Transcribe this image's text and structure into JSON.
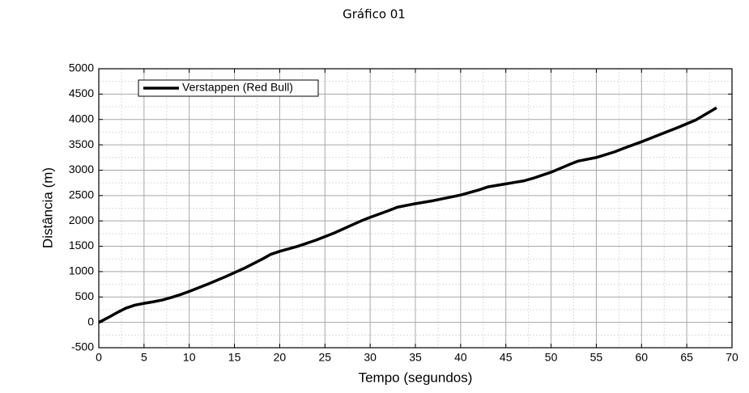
{
  "chart_data": {
    "type": "line",
    "title": "Gráfico 01",
    "x_label": "Tempo (segundos)",
    "y_label": "Distância (m)",
    "x": [
      0,
      1,
      2,
      3,
      4,
      5,
      6,
      7,
      8,
      9,
      10,
      12,
      14,
      16,
      18,
      19,
      20,
      22,
      24,
      26,
      28,
      29,
      30,
      32,
      33,
      35,
      37,
      40,
      42,
      43,
      45,
      47,
      48,
      50,
      52,
      53,
      55,
      57,
      58,
      60,
      62,
      64,
      66,
      68.3
    ],
    "series": [
      {
        "name": "Verstappen (Red Bull)",
        "color": "#000000",
        "values": [
          0,
          90,
          190,
          280,
          340,
          375,
          405,
          440,
          490,
          545,
          610,
          750,
          900,
          1060,
          1240,
          1340,
          1400,
          1500,
          1620,
          1760,
          1920,
          2000,
          2070,
          2200,
          2270,
          2340,
          2400,
          2510,
          2610,
          2670,
          2730,
          2790,
          2840,
          2960,
          3110,
          3180,
          3250,
          3360,
          3430,
          3560,
          3700,
          3840,
          3990,
          4230
        ]
      }
    ],
    "xlim": [
      0,
      70
    ],
    "xticks": [
      0,
      5,
      10,
      15,
      20,
      25,
      30,
      35,
      40,
      45,
      50,
      55,
      60,
      65,
      70
    ],
    "ylim": [
      -500,
      5000
    ],
    "yticks": [
      -500,
      0,
      500,
      1000,
      1500,
      2000,
      2500,
      3000,
      3500,
      4000,
      4500,
      5000
    ],
    "grid": true,
    "legend": "top-left"
  }
}
